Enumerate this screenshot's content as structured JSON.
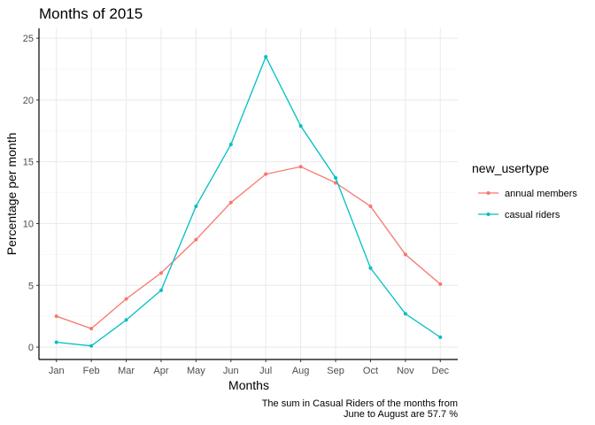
{
  "chart_data": {
    "type": "line",
    "title": "Months of 2015",
    "xlabel": "Months",
    "ylabel": "Percentage per month",
    "categories": [
      "Jan",
      "Feb",
      "Mar",
      "Apr",
      "May",
      "Jun",
      "Jul",
      "Aug",
      "Sep",
      "Oct",
      "Nov",
      "Dec"
    ],
    "ylim": [
      -1,
      25.8
    ],
    "yticks": [
      0,
      5,
      10,
      15,
      20,
      25
    ],
    "grid": true,
    "legend": {
      "title": "new_usertype",
      "placement": "right"
    },
    "series": [
      {
        "name": "annual members",
        "color": "#F8766D",
        "values": [
          2.5,
          1.5,
          3.9,
          6.0,
          8.7,
          11.7,
          14.0,
          14.6,
          13.3,
          11.4,
          7.5,
          5.1
        ]
      },
      {
        "name": "casual riders",
        "color": "#00BFC4",
        "values": [
          0.4,
          0.1,
          2.2,
          4.6,
          11.4,
          16.4,
          23.5,
          17.9,
          13.7,
          6.4,
          2.7,
          0.8
        ]
      }
    ],
    "caption_lines": [
      "The sum in Casual Riders of the months from",
      "June to August are 57.7 %"
    ]
  }
}
